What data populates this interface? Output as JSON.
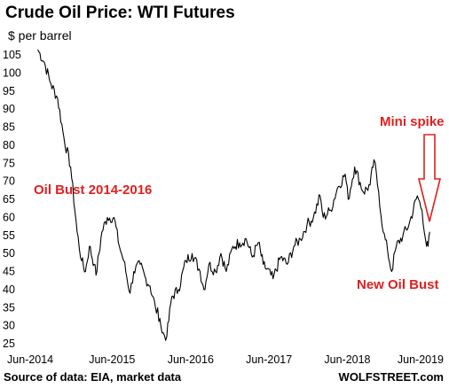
{
  "chart_data": {
    "type": "line",
    "title": "Crude Oil Price: WTI Futures",
    "subtitle": "$ per barrel",
    "source": "Source of data: EIA, market data",
    "brand": "WOLFSTREET.com",
    "ylim": [
      25,
      107
    ],
    "y_ticks": [
      105,
      100,
      95,
      90,
      85,
      80,
      75,
      70,
      65,
      60,
      55,
      50,
      45,
      40,
      35,
      30,
      25
    ],
    "x_ticks": [
      "Jun-2014",
      "Jun-2015",
      "Jun-2016",
      "Jun-2017",
      "Jun-2018",
      "Jun-2019"
    ],
    "grid": false,
    "line_color": "#000000",
    "annotation_color": "#e0201f",
    "series": [
      {
        "x": [
          "2014-06-20",
          "2014-07-20",
          "2014-08-20",
          "2014-09-20",
          "2014-10-20",
          "2014-11-20",
          "2014-12-20",
          "2015-01-10",
          "2015-01-28",
          "2015-02-15",
          "2015-03-10",
          "2015-03-18",
          "2015-04-15",
          "2015-05-10",
          "2015-06-10",
          "2015-07-05",
          "2015-07-25",
          "2015-08-24",
          "2015-09-10",
          "2015-10-10",
          "2015-11-05",
          "2015-11-25",
          "2015-12-20",
          "2016-01-10",
          "2016-01-20",
          "2016-02-11",
          "2016-03-05",
          "2016-04-05",
          "2016-05-10",
          "2016-06-08",
          "2016-07-15",
          "2016-08-02",
          "2016-08-25",
          "2016-09-25",
          "2016-10-20",
          "2016-11-14",
          "2016-12-15",
          "2017-01-15",
          "2017-02-15",
          "2017-03-15",
          "2017-04-12",
          "2017-05-05",
          "2017-06-20",
          "2017-07-25",
          "2017-08-25",
          "2017-09-25",
          "2017-10-25",
          "2017-11-25",
          "2017-12-25",
          "2018-01-25",
          "2018-02-09",
          "2018-03-15",
          "2018-04-15",
          "2018-05-22",
          "2018-06-05",
          "2018-07-05",
          "2018-08-15",
          "2018-09-15",
          "2018-10-03",
          "2018-10-25",
          "2018-11-15",
          "2018-12-05",
          "2018-12-24",
          "2019-01-15",
          "2019-02-15",
          "2019-03-15",
          "2019-04-23",
          "2019-05-15",
          "2019-06-05",
          "2019-06-12",
          "2019-06-20"
        ],
        "y": [
          106.5,
          103,
          97,
          93,
          82,
          74,
          56,
          48,
          45,
          52,
          47,
          44,
          56,
          60,
          60,
          52,
          48,
          39,
          45,
          47,
          43,
          41,
          35,
          32,
          28,
          27,
          38,
          40,
          48,
          50,
          45,
          40,
          47,
          45,
          50,
          45,
          52,
          53,
          54,
          49,
          53,
          47,
          43,
          49,
          47,
          52,
          54,
          58,
          60,
          66,
          60,
          62,
          68,
          72,
          65,
          74,
          67,
          69,
          76,
          67,
          56,
          51,
          45,
          52,
          55,
          58,
          66,
          62,
          52,
          52,
          56
        ]
      }
    ],
    "annotations": [
      {
        "text": "Oil Bust 2014-2016"
      },
      {
        "text": "Mini spike"
      },
      {
        "text": "New Oil Bust"
      }
    ]
  }
}
